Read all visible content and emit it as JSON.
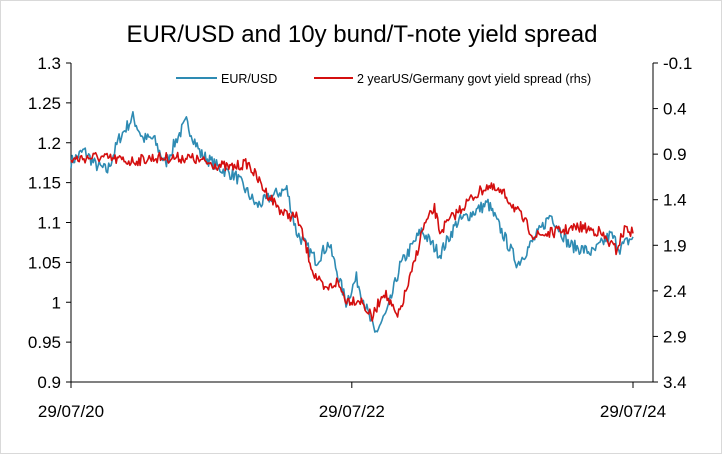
{
  "chart_data": {
    "type": "line",
    "title": "EUR/USD and 10y bund/T-note yield spread",
    "x_tick_labels": [
      "29/07/20",
      "29/07/22",
      "29/07/24"
    ],
    "x_range": [
      "2020-07-29",
      "2024-07-29"
    ],
    "y_left": {
      "range": [
        0.9,
        1.3
      ],
      "ticks": [
        "1.3",
        "1.25",
        "1.2",
        "1.15",
        "1.1",
        "1.05",
        "1",
        "0.95",
        "0.9"
      ]
    },
    "y_right": {
      "range": [
        -0.1,
        3.4
      ],
      "inverted": true,
      "ticks": [
        "-0.1",
        "0.4",
        "0.9",
        "1.4",
        "1.9",
        "2.4",
        "2.9",
        "3.4"
      ]
    },
    "grid": false,
    "legend": {
      "placement": "top"
    },
    "series": [
      {
        "name": "EUR/USD",
        "axis": "left",
        "color": "#2e8bb3",
        "points": [
          [
            "2020-07-29",
            1.176
          ],
          [
            "2020-09-01",
            1.19
          ],
          [
            "2020-10-01",
            1.172
          ],
          [
            "2020-11-01",
            1.165
          ],
          [
            "2020-12-01",
            1.205
          ],
          [
            "2021-01-06",
            1.232
          ],
          [
            "2021-02-01",
            1.205
          ],
          [
            "2021-03-01",
            1.205
          ],
          [
            "2021-03-31",
            1.173
          ],
          [
            "2021-05-01",
            1.206
          ],
          [
            "2021-05-25",
            1.226
          ],
          [
            "2021-07-01",
            1.186
          ],
          [
            "2021-08-20",
            1.168
          ],
          [
            "2021-10-01",
            1.158
          ],
          [
            "2021-11-24",
            1.121
          ],
          [
            "2022-01-10",
            1.135
          ],
          [
            "2022-02-10",
            1.142
          ],
          [
            "2022-03-07",
            1.088
          ],
          [
            "2022-04-28",
            1.052
          ],
          [
            "2022-05-30",
            1.074
          ],
          [
            "2022-07-14",
            1.0
          ],
          [
            "2022-08-10",
            1.03
          ],
          [
            "2022-09-27",
            0.96
          ],
          [
            "2022-10-31",
            0.99
          ],
          [
            "2022-12-01",
            1.045
          ],
          [
            "2023-01-26",
            1.09
          ],
          [
            "2023-03-15",
            1.06
          ],
          [
            "2023-04-28",
            1.1
          ],
          [
            "2023-07-18",
            1.124
          ],
          [
            "2023-10-03",
            1.048
          ],
          [
            "2023-12-28",
            1.11
          ],
          [
            "2024-02-14",
            1.072
          ],
          [
            "2024-04-16",
            1.062
          ],
          [
            "2024-06-01",
            1.085
          ],
          [
            "2024-06-25",
            1.068
          ],
          [
            "2024-07-29",
            1.082
          ]
        ]
      },
      {
        "name": "2 yearUS/Germany govt yield spread (rhs)",
        "axis": "right",
        "color": "#d40f0f",
        "points": [
          [
            "2020-07-29",
            0.96
          ],
          [
            "2020-10-01",
            0.93
          ],
          [
            "2021-01-01",
            0.98
          ],
          [
            "2021-03-01",
            0.94
          ],
          [
            "2021-06-01",
            0.94
          ],
          [
            "2021-07-15",
            0.99
          ],
          [
            "2021-09-15",
            1.05
          ],
          [
            "2021-11-01",
            1.0
          ],
          [
            "2021-12-15",
            1.3
          ],
          [
            "2022-02-01",
            1.55
          ],
          [
            "2022-03-10",
            1.6
          ],
          [
            "2022-04-20",
            2.2
          ],
          [
            "2022-05-20",
            2.4
          ],
          [
            "2022-06-20",
            2.3
          ],
          [
            "2022-07-15",
            2.5
          ],
          [
            "2022-08-20",
            2.5
          ],
          [
            "2022-09-20",
            2.7
          ],
          [
            "2022-10-20",
            2.4
          ],
          [
            "2022-11-25",
            2.7
          ],
          [
            "2023-01-01",
            2.2
          ],
          [
            "2023-01-31",
            1.7
          ],
          [
            "2023-03-01",
            1.5
          ],
          [
            "2023-03-15",
            1.75
          ],
          [
            "2023-04-15",
            1.6
          ],
          [
            "2023-06-01",
            1.4
          ],
          [
            "2023-07-15",
            1.25
          ],
          [
            "2023-09-01",
            1.35
          ],
          [
            "2023-10-15",
            1.6
          ],
          [
            "2023-11-15",
            1.8
          ],
          [
            "2024-01-15",
            1.75
          ],
          [
            "2024-03-15",
            1.7
          ],
          [
            "2024-05-01",
            1.75
          ],
          [
            "2024-06-15",
            1.95
          ],
          [
            "2024-07-10",
            1.7
          ],
          [
            "2024-07-29",
            1.77
          ]
        ]
      }
    ]
  }
}
